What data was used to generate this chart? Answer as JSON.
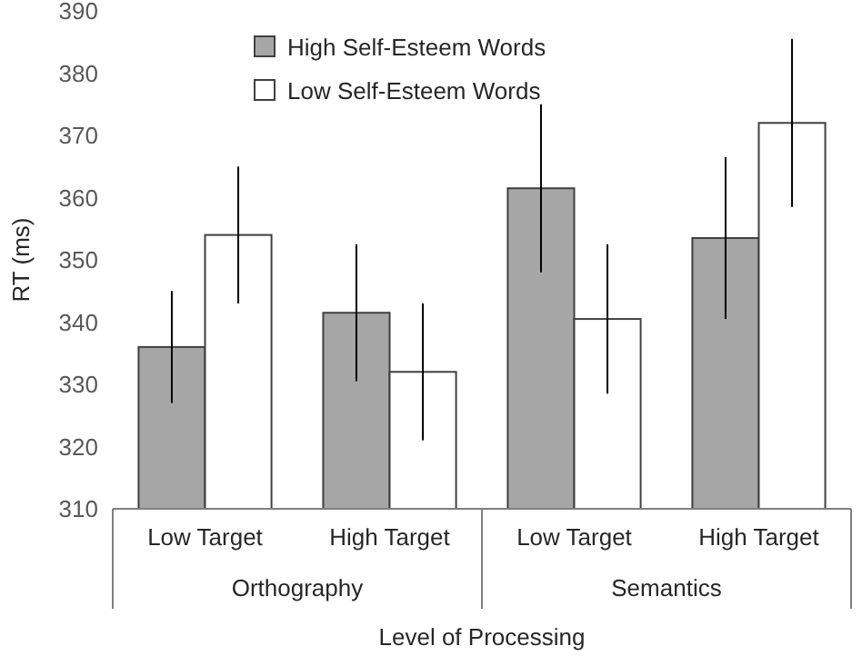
{
  "chart_data": {
    "type": "bar",
    "xlabel": "Level of Processing",
    "ylabel": "RT (ms)",
    "categories": [
      "Low Target",
      "High Target",
      "Low Target",
      "High Target"
    ],
    "series": [
      {
        "name": "High Self-Esteem Words",
        "color": "#a6a6a6",
        "values": [
          336,
          341.5,
          361.5,
          353.5
        ],
        "errors": [
          9,
          11,
          13.5,
          13
        ]
      },
      {
        "name": "Low Self-Esteem Words",
        "color": "#ffffff",
        "values": [
          354,
          332,
          340.5,
          372
        ],
        "errors": [
          11,
          11,
          12,
          13.5
        ]
      }
    ],
    "annotations": [
      "Orthography",
      "Semantics"
    ],
    "ylim": [
      310,
      390
    ],
    "yticks": [
      310,
      320,
      330,
      340,
      350,
      360,
      370,
      380,
      390
    ],
    "legend": "top left",
    "grid": false
  }
}
